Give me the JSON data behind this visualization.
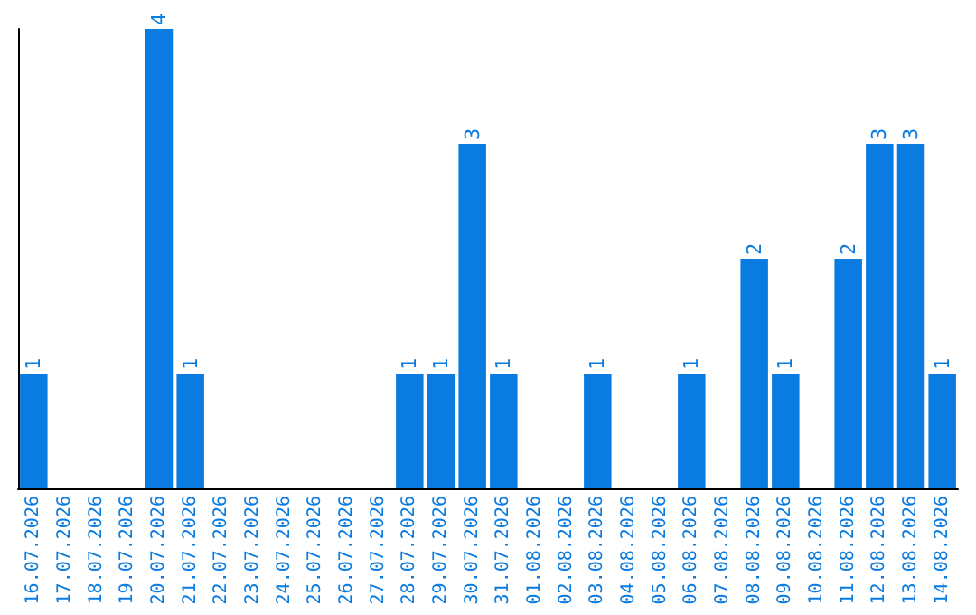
{
  "chart_data": {
    "type": "bar",
    "categories": [
      "16.07.2026",
      "17.07.2026",
      "18.07.2026",
      "19.07.2026",
      "20.07.2026",
      "21.07.2026",
      "22.07.2026",
      "23.07.2026",
      "24.07.2026",
      "25.07.2026",
      "26.07.2026",
      "27.07.2026",
      "28.07.2026",
      "29.07.2026",
      "30.07.2026",
      "31.07.2026",
      "01.08.2026",
      "02.08.2026",
      "03.08.2026",
      "04.08.2026",
      "05.08.2026",
      "06.08.2026",
      "07.08.2026",
      "08.08.2026",
      "09.08.2026",
      "10.08.2026",
      "11.08.2026",
      "12.08.2026",
      "13.08.2026",
      "14.08.2026"
    ],
    "values": [
      1,
      0,
      0,
      0,
      4,
      1,
      0,
      0,
      0,
      0,
      0,
      0,
      1,
      1,
      3,
      1,
      0,
      0,
      1,
      0,
      0,
      1,
      0,
      2,
      1,
      0,
      2,
      3,
      3,
      1
    ],
    "value_labels": [
      "1",
      null,
      null,
      null,
      "4",
      "1",
      null,
      null,
      null,
      null,
      null,
      null,
      "1",
      "1",
      "3",
      "1",
      null,
      null,
      "1",
      null,
      null,
      "1",
      null,
      "2",
      "1",
      null,
      "2",
      "3",
      "3",
      "1"
    ],
    "color": "#0a7be0",
    "tick_labels": "x",
    "grid": false
  }
}
